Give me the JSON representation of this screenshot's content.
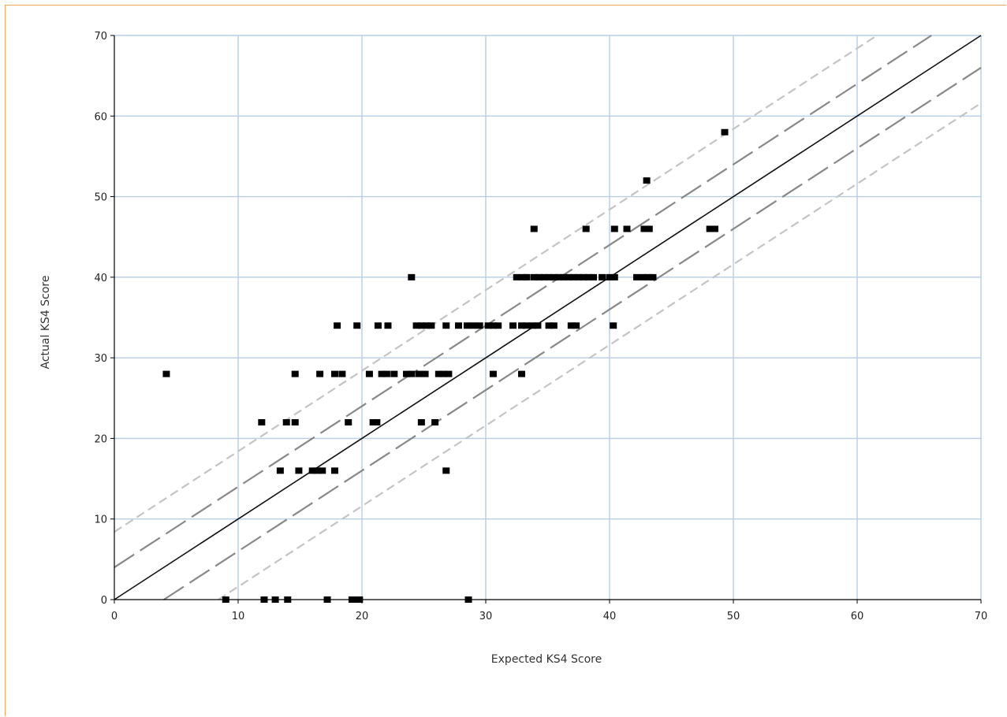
{
  "chart_data": {
    "type": "scatter",
    "title": "",
    "xlabel": "Expected KS4 Score",
    "ylabel": "Actual KS4 Score",
    "xlim": [
      0,
      70
    ],
    "ylim": [
      0,
      70
    ],
    "xticks": [
      0,
      10,
      20,
      30,
      40,
      50,
      60,
      70
    ],
    "yticks": [
      0,
      10,
      20,
      30,
      40,
      50,
      60,
      70
    ],
    "grid": true,
    "reference_lines": [
      {
        "style": "solid",
        "color": "#111111",
        "offset": 0
      },
      {
        "style": "dashed",
        "color": "#888888",
        "offset": 4
      },
      {
        "style": "dashed",
        "color": "#888888",
        "offset": -4
      },
      {
        "style": "dashed",
        "color": "#c4c4c4",
        "offset": 8.4
      },
      {
        "style": "dashed",
        "color": "#c4c4c4",
        "offset": -8.4
      }
    ],
    "points": [
      [
        4.2,
        28
      ],
      [
        9,
        0
      ],
      [
        12.1,
        0
      ],
      [
        13,
        0
      ],
      [
        14,
        0
      ],
      [
        17.2,
        0
      ],
      [
        19.2,
        0
      ],
      [
        19.5,
        0
      ],
      [
        19.8,
        0
      ],
      [
        28.6,
        0
      ],
      [
        13.4,
        16
      ],
      [
        14.9,
        16
      ],
      [
        16,
        16
      ],
      [
        16.4,
        16
      ],
      [
        16.8,
        16
      ],
      [
        17.8,
        16
      ],
      [
        26.8,
        16
      ],
      [
        11.9,
        22
      ],
      [
        13.9,
        22
      ],
      [
        14.6,
        22
      ],
      [
        18.9,
        22
      ],
      [
        20.9,
        22
      ],
      [
        21.2,
        22
      ],
      [
        24.8,
        22
      ],
      [
        25.9,
        22
      ],
      [
        14.6,
        28
      ],
      [
        16.6,
        28
      ],
      [
        17.8,
        28
      ],
      [
        18.4,
        28
      ],
      [
        20.6,
        28
      ],
      [
        21.6,
        28
      ],
      [
        22,
        28
      ],
      [
        22.6,
        28
      ],
      [
        23.6,
        28
      ],
      [
        24,
        28
      ],
      [
        24.6,
        28
      ],
      [
        25.1,
        28
      ],
      [
        26.2,
        28
      ],
      [
        26.6,
        28
      ],
      [
        27,
        28
      ],
      [
        30.6,
        28
      ],
      [
        32.9,
        28
      ],
      [
        18,
        34
      ],
      [
        19.6,
        34
      ],
      [
        21.3,
        34
      ],
      [
        22.1,
        34
      ],
      [
        24.4,
        34
      ],
      [
        24.8,
        34
      ],
      [
        25.2,
        34
      ],
      [
        25.6,
        34
      ],
      [
        26.8,
        34
      ],
      [
        27.8,
        34
      ],
      [
        28.5,
        34
      ],
      [
        29,
        34
      ],
      [
        29.5,
        34
      ],
      [
        30.2,
        34
      ],
      [
        30.6,
        34
      ],
      [
        31,
        34
      ],
      [
        32.2,
        34
      ],
      [
        32.9,
        34
      ],
      [
        33.3,
        34
      ],
      [
        33.8,
        34
      ],
      [
        34.2,
        34
      ],
      [
        35.1,
        34
      ],
      [
        35.5,
        34
      ],
      [
        36.9,
        34
      ],
      [
        37.3,
        34
      ],
      [
        40.3,
        34
      ],
      [
        24,
        40
      ],
      [
        32.5,
        40
      ],
      [
        33,
        40
      ],
      [
        33.3,
        40
      ],
      [
        33.9,
        40
      ],
      [
        34.3,
        40
      ],
      [
        34.7,
        40
      ],
      [
        35.1,
        40
      ],
      [
        35.5,
        40
      ],
      [
        35.9,
        40
      ],
      [
        36.3,
        40
      ],
      [
        36.7,
        40
      ],
      [
        37.1,
        40
      ],
      [
        37.5,
        40
      ],
      [
        37.9,
        40
      ],
      [
        38.3,
        40
      ],
      [
        38.7,
        40
      ],
      [
        39.4,
        40
      ],
      [
        40,
        40
      ],
      [
        40.4,
        40
      ],
      [
        42.2,
        40
      ],
      [
        42.7,
        40
      ],
      [
        43.1,
        40
      ],
      [
        43.5,
        40
      ],
      [
        33.9,
        46
      ],
      [
        38.1,
        46
      ],
      [
        40.4,
        46
      ],
      [
        41.4,
        46
      ],
      [
        42.8,
        46
      ],
      [
        43.2,
        46
      ],
      [
        48.1,
        46
      ],
      [
        48.5,
        46
      ],
      [
        43,
        52
      ],
      [
        49.3,
        58
      ]
    ],
    "colors": {
      "points": "#000000",
      "grid": "#b7cde8",
      "axis": "#000000"
    }
  }
}
